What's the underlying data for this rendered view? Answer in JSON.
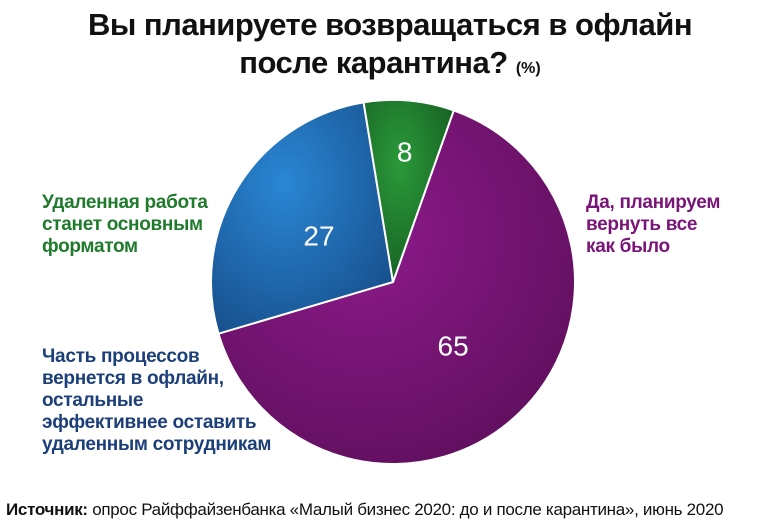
{
  "title_line1": "Вы планируете возвращаться в офлайн",
  "title_line2": "после карантина?",
  "title_unit": "(%)",
  "chart_data": {
    "type": "pie",
    "title": "Вы планируете возвращаться в офлайн после карантина?",
    "unit": "%",
    "slices": [
      {
        "label": "Да, планируем вернуть все как было",
        "value": 65,
        "color": "#7a1478"
      },
      {
        "label": "Часть процессов вернется в офлайн, остальные эффективнее оставить удаленным сотрудникам",
        "value": 27,
        "color": "#1f6fb8"
      },
      {
        "label": "Удаленная работа станет основным форматом",
        "value": 8,
        "color": "#1f7a2c"
      }
    ]
  },
  "labels": {
    "green": [
      "Удаленная работа",
      "станет основным",
      "форматом"
    ],
    "blue": [
      "Часть процессов",
      "вернется в офлайн,",
      "остальные",
      "эффективнее оставить",
      "удаленным сотрудникам"
    ],
    "purple": [
      "Да, планируем",
      "вернуть все",
      "как было"
    ]
  },
  "source": {
    "prefix": "Источник:",
    "text": " опрос Райффайзенбанка «Малый бизнес 2020: до и после карантина», июнь 2020"
  }
}
